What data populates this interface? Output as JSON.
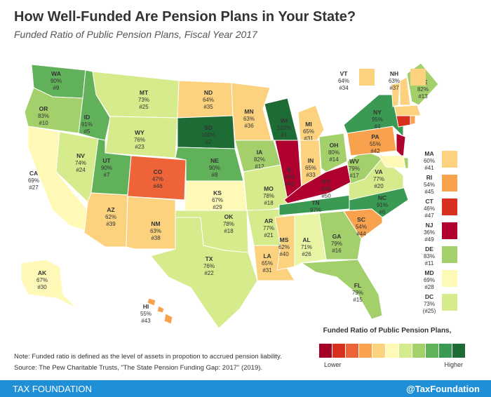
{
  "header": {
    "title": "How Well-Funded Are Pension Plans in Your State?",
    "subtitle": "Funded Ratio of Public Pension Plans, Fiscal Year 2017"
  },
  "states": [
    {
      "abbr": "WA",
      "pct": "90%",
      "rank": "#9",
      "color": "#61b05a"
    },
    {
      "abbr": "OR",
      "pct": "83%",
      "rank": "#10",
      "color": "#a3d06b"
    },
    {
      "abbr": "CA",
      "pct": "69%",
      "rank": "#27",
      "color": "#fff9b8"
    },
    {
      "abbr": "NV",
      "pct": "74%",
      "rank": "#24",
      "color": "#d6eb8b"
    },
    {
      "abbr": "ID",
      "pct": "91%",
      "rank": "#5",
      "color": "#61b05a"
    },
    {
      "abbr": "MT",
      "pct": "73%",
      "rank": "#25",
      "color": "#d6eb8b"
    },
    {
      "abbr": "WY",
      "pct": "76%",
      "rank": "#23",
      "color": "#d6eb8b"
    },
    {
      "abbr": "UT",
      "pct": "90%",
      "rank": "#7",
      "color": "#61b05a"
    },
    {
      "abbr": "AZ",
      "pct": "62%",
      "rank": "#39",
      "color": "#fdd27f"
    },
    {
      "abbr": "CO",
      "pct": "47%",
      "rank": "#46",
      "color": "#ee6337"
    },
    {
      "abbr": "NM",
      "pct": "63%",
      "rank": "#38",
      "color": "#fdd27f"
    },
    {
      "abbr": "ND",
      "pct": "64%",
      "rank": "#35",
      "color": "#fdd27f"
    },
    {
      "abbr": "SD",
      "pct": "100%",
      "rank": "#2",
      "color": "#1d6b35"
    },
    {
      "abbr": "NE",
      "pct": "90%",
      "rank": "#8",
      "color": "#61b05a"
    },
    {
      "abbr": "KS",
      "pct": "67%",
      "rank": "#29",
      "color": "#fff9b8"
    },
    {
      "abbr": "OK",
      "pct": "78%",
      "rank": "#18",
      "color": "#d6eb8b"
    },
    {
      "abbr": "TX",
      "pct": "76%",
      "rank": "#22",
      "color": "#d6eb8b"
    },
    {
      "abbr": "MN",
      "pct": "63%",
      "rank": "#36",
      "color": "#fdd27f"
    },
    {
      "abbr": "IA",
      "pct": "82%",
      "rank": "#12",
      "color": "#a3d06b"
    },
    {
      "abbr": "MO",
      "pct": "78%",
      "rank": "#18",
      "color": "#d6eb8b"
    },
    {
      "abbr": "AR",
      "pct": "77%",
      "rank": "#21",
      "color": "#d6eb8b"
    },
    {
      "abbr": "LA",
      "pct": "65%",
      "rank": "#31",
      "color": "#fdd27f"
    },
    {
      "abbr": "WI",
      "pct": "103%",
      "rank": "#1",
      "color": "#1d6b35"
    },
    {
      "abbr": "IL",
      "pct": "38%",
      "rank": "#48",
      "color": "#b0002e"
    },
    {
      "abbr": "MI",
      "pct": "65%",
      "rank": "#31",
      "color": "#fdd27f"
    },
    {
      "abbr": "IN",
      "pct": "65%",
      "rank": "#33",
      "color": "#fdd27f"
    },
    {
      "abbr": "OH",
      "pct": "80%",
      "rank": "#14",
      "color": "#a3d06b"
    },
    {
      "abbr": "KY",
      "pct": "34%",
      "rank": "#50",
      "color": "#b0002e"
    },
    {
      "abbr": "TN",
      "pct": "97%",
      "rank": "#3",
      "color": "#3a9a54"
    },
    {
      "abbr": "NC",
      "pct": "91%",
      "rank": "#6",
      "color": "#3a9a54"
    },
    {
      "abbr": "MS",
      "pct": "62%",
      "rank": "#40",
      "color": "#fdd27f"
    },
    {
      "abbr": "AL",
      "pct": "71%",
      "rank": "#26",
      "color": "#e9f4a5"
    },
    {
      "abbr": "GA",
      "pct": "79%",
      "rank": "#16",
      "color": "#a3d06b"
    },
    {
      "abbr": "FL",
      "pct": "79%",
      "rank": "#15",
      "color": "#a3d06b"
    },
    {
      "abbr": "SC",
      "pct": "54%",
      "rank": "#44",
      "color": "#f9a24e"
    },
    {
      "abbr": "VA",
      "pct": "77%",
      "rank": "#20",
      "color": "#d6eb8b"
    },
    {
      "abbr": "WV",
      "pct": "79%",
      "rank": "#17",
      "color": "#a3d06b"
    },
    {
      "abbr": "PA",
      "pct": "55%",
      "rank": "#42",
      "color": "#f9a24e"
    },
    {
      "abbr": "NY",
      "pct": "95%",
      "rank": "#4",
      "color": "#3a9a54"
    },
    {
      "abbr": "ME",
      "pct": "82%",
      "rank": "#13",
      "color": "#a3d06b"
    },
    {
      "abbr": "AK",
      "pct": "67%",
      "rank": "#30",
      "color": "#fff9b8"
    },
    {
      "abbr": "HI",
      "pct": "55%",
      "rank": "#43",
      "color": "#f9a24e"
    },
    {
      "abbr": "VT",
      "pct": "64%",
      "rank": "#34",
      "color": "#fdd27f"
    },
    {
      "abbr": "NH",
      "pct": "63%",
      "rank": "#37",
      "color": "#fdd27f"
    },
    {
      "abbr": "MA",
      "pct": "60%",
      "rank": "#41",
      "color": "#fdd27f"
    },
    {
      "abbr": "RI",
      "pct": "54%",
      "rank": "#45",
      "color": "#f9a24e"
    },
    {
      "abbr": "CT",
      "pct": "46%",
      "rank": "#47",
      "color": "#d7301f"
    },
    {
      "abbr": "NJ",
      "pct": "36%",
      "rank": "#49",
      "color": "#b0002e"
    },
    {
      "abbr": "DE",
      "pct": "83%",
      "rank": "#11",
      "color": "#a3d06b"
    },
    {
      "abbr": "MD",
      "pct": "69%",
      "rank": "#28",
      "color": "#fff9b8"
    },
    {
      "abbr": "DC",
      "pct": "73%",
      "rank": "(#25)",
      "color": "#d6eb8b"
    }
  ],
  "legend": {
    "title": "Funded Ratio of Public Pension Plans,",
    "low": "Lower",
    "high": "Higher",
    "colors": [
      "#a50026",
      "#d7301f",
      "#ee6337",
      "#f9a24e",
      "#fdd27f",
      "#fff9b8",
      "#d6eb8b",
      "#a3d06b",
      "#61b05a",
      "#3a9a54",
      "#1d6b35"
    ]
  },
  "note": "Note: Funded ratio is defined as the level of assets in propotion to accrued pension liability.",
  "source": "Source: The Pew Charitable Trusts, \"The State Pension Funding Gap: 2017\" (2019).",
  "footer": {
    "left": "TAX FOUNDATION",
    "right": "@TaxFoundation"
  }
}
